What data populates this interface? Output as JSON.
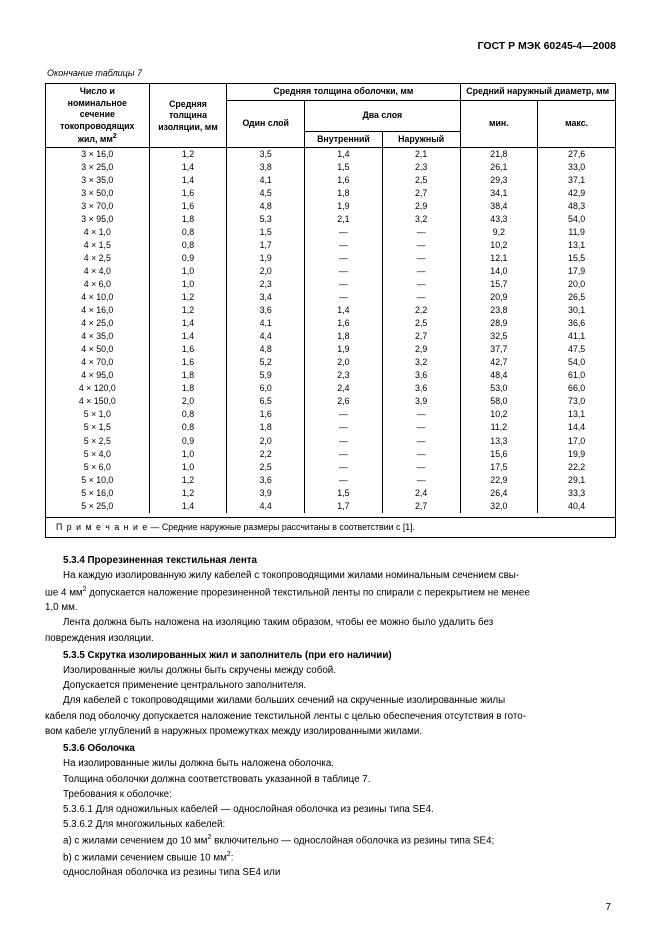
{
  "header": "ГОСТ Р МЭК 60245-4—2008",
  "table_caption": "Окончание таблицы 7",
  "table": {
    "head": {
      "col1": "Число и номинальное сечение токопроводящих жил, мм",
      "col1_sup": "2",
      "col2": "Средняя толщина изоляции, мм",
      "col3": "Средняя толщина оболочки, мм",
      "col4": "Средний наружный диаметр, мм",
      "sub_one": "Один слой",
      "sub_two": "Два слоя",
      "sub_inner": "Внутренний",
      "sub_outer": "Наружный",
      "sub_min": "мин.",
      "sub_max": "макс."
    },
    "rows": [
      [
        "3 × 16,0",
        "1,2",
        "3,5",
        "1,4",
        "2,1",
        "21,8",
        "27,6"
      ],
      [
        "3 × 25,0",
        "1,4",
        "3,8",
        "1,5",
        "2,3",
        "26,1",
        "33,0"
      ],
      [
        "3 × 35,0",
        "1,4",
        "4,1",
        "1,6",
        "2,5",
        "29,3",
        "37,1"
      ],
      [
        "3 × 50,0",
        "1,6",
        "4,5",
        "1,8",
        "2,7",
        "34,1",
        "42,9"
      ],
      [
        "3 × 70,0",
        "1,6",
        "4,8",
        "1,9",
        "2,9",
        "38,4",
        "48,3"
      ],
      [
        "3 × 95,0",
        "1,8",
        "5,3",
        "2,1",
        "3,2",
        "43,3",
        "54,0"
      ],
      [
        "4 × 1,0",
        "0,8",
        "1,5",
        "—",
        "—",
        "9,2",
        "11,9"
      ],
      [
        "4 × 1,5",
        "0,8",
        "1,7",
        "—",
        "—",
        "10,2",
        "13,1"
      ],
      [
        "4 × 2,5",
        "0,9",
        "1,9",
        "—",
        "—",
        "12,1",
        "15,5"
      ],
      [
        "4 × 4,0",
        "1,0",
        "2,0",
        "—",
        "—",
        "14,0",
        "17,9"
      ],
      [
        "4 × 6,0",
        "1,0",
        "2,3",
        "—",
        "—",
        "15,7",
        "20,0"
      ],
      [
        "4 × 10,0",
        "1,2",
        "3,4",
        "—",
        "—",
        "20,9",
        "26,5"
      ],
      [
        "4 × 16,0",
        "1,2",
        "3,6",
        "1,4",
        "2,2",
        "23,8",
        "30,1"
      ],
      [
        "4 × 25,0",
        "1,4",
        "4,1",
        "1,6",
        "2,5",
        "28,9",
        "36,6"
      ],
      [
        "4 × 35,0",
        "1,4",
        "4,4",
        "1,8",
        "2,7",
        "32,5",
        "41,1"
      ],
      [
        "4 × 50,0",
        "1,6",
        "4,8",
        "1,9",
        "2,9",
        "37,7",
        "47,5"
      ],
      [
        "4 × 70,0",
        "1,6",
        "5,2",
        "2,0",
        "3,2",
        "42,7",
        "54,0"
      ],
      [
        "4 × 95,0",
        "1,8",
        "5,9",
        "2,3",
        "3,6",
        "48,4",
        "61,0"
      ],
      [
        "4 × 120,0",
        "1,8",
        "6,0",
        "2,4",
        "3,6",
        "53,0",
        "66,0"
      ],
      [
        "4 × 150,0",
        "2,0",
        "6,5",
        "2,6",
        "3,9",
        "58,0",
        "73,0"
      ],
      [
        "5 × 1,0",
        "0,8",
        "1,6",
        "—",
        "—",
        "10,2",
        "13,1"
      ],
      [
        "5 × 1,5",
        "0,8",
        "1,8",
        "—",
        "—",
        "11,2",
        "14,4"
      ],
      [
        "5 × 2,5",
        "0,9",
        "2,0",
        "—",
        "—",
        "13,3",
        "17,0"
      ],
      [
        "5 × 4,0",
        "1,0",
        "2,2",
        "—",
        "—",
        "15,6",
        "19,9"
      ],
      [
        "5 × 6,0",
        "1,0",
        "2,5",
        "—",
        "—",
        "17,5",
        "22,2"
      ],
      [
        "5 × 10,0",
        "1,2",
        "3,6",
        "—",
        "—",
        "22,9",
        "29,1"
      ],
      [
        "5 × 16,0",
        "1,2",
        "3,9",
        "1,5",
        "2,4",
        "26,4",
        "33,3"
      ],
      [
        "5 × 25,0",
        "1,4",
        "4,4",
        "1,7",
        "2,7",
        "32,0",
        "40,4"
      ]
    ],
    "note_label": "П р и м е ч а н и е",
    "note_text": "— Средние наружные размеры рассчитаны в соответствии с [1]."
  },
  "sections": {
    "s534_title": "5.3.4  Прорезиненная текстильная лента",
    "s534_p1a": "На каждую изолированную жилу кабелей с токопроводящими жилами номинальным сечением свы-",
    "s534_p1b_pre": "ше 4 мм",
    "s534_p1b_post": " допускается наложение прорезиненной текстильной ленты по спирали с перекрытием не менее",
    "s534_p1c": "1,0 мм.",
    "s534_p2a": "Лента должна быть наложена на изоляцию таким образом, чтобы ее можно было удалить без",
    "s534_p2b": "повреждения изоляции.",
    "s535_title": "5.3.5  Скрутка изолированных жил и заполнитель (при его наличии)",
    "s535_p1": "Изолированные жилы должны быть скручены между собой.",
    "s535_p2": "Допускается применение центрального заполнителя.",
    "s535_p3a": "Для кабелей с токопроводящими жилами больших сечений на скрученные изолированные жилы",
    "s535_p3b": "кабеля под оболочку допускается наложение текстильной ленты с целью обеспечения отсутствия в гото-",
    "s535_p3c": "вом кабеле углублений в наружных промежутках между изолированными жилами.",
    "s536_title": "5.3.6  Оболочка",
    "s536_p1": "На изолированные жилы должна быть наложена оболочка.",
    "s536_p2": "Толщина оболочки должна соответствовать указанной в таблице 7.",
    "s536_p3": "Требования к оболочке:",
    "s536_p4": "5.3.6.1  Для одножильных кабелей — однослойная оболочка из резины типа SE4.",
    "s536_p5": "5.3.6.2  Для многожильных кабелей:",
    "s536_p6_pre": "a)  с жилами сечением до 10 мм",
    "s536_p6_post": " включительно — однослойная оболочка из резины типа SE4;",
    "s536_p7_pre": "b)  с жилами сечением свыше 10 мм",
    "s536_p7_post": ":",
    "s536_p8": "однослойная оболочка из резины типа SE4 или"
  },
  "page_number": "7"
}
